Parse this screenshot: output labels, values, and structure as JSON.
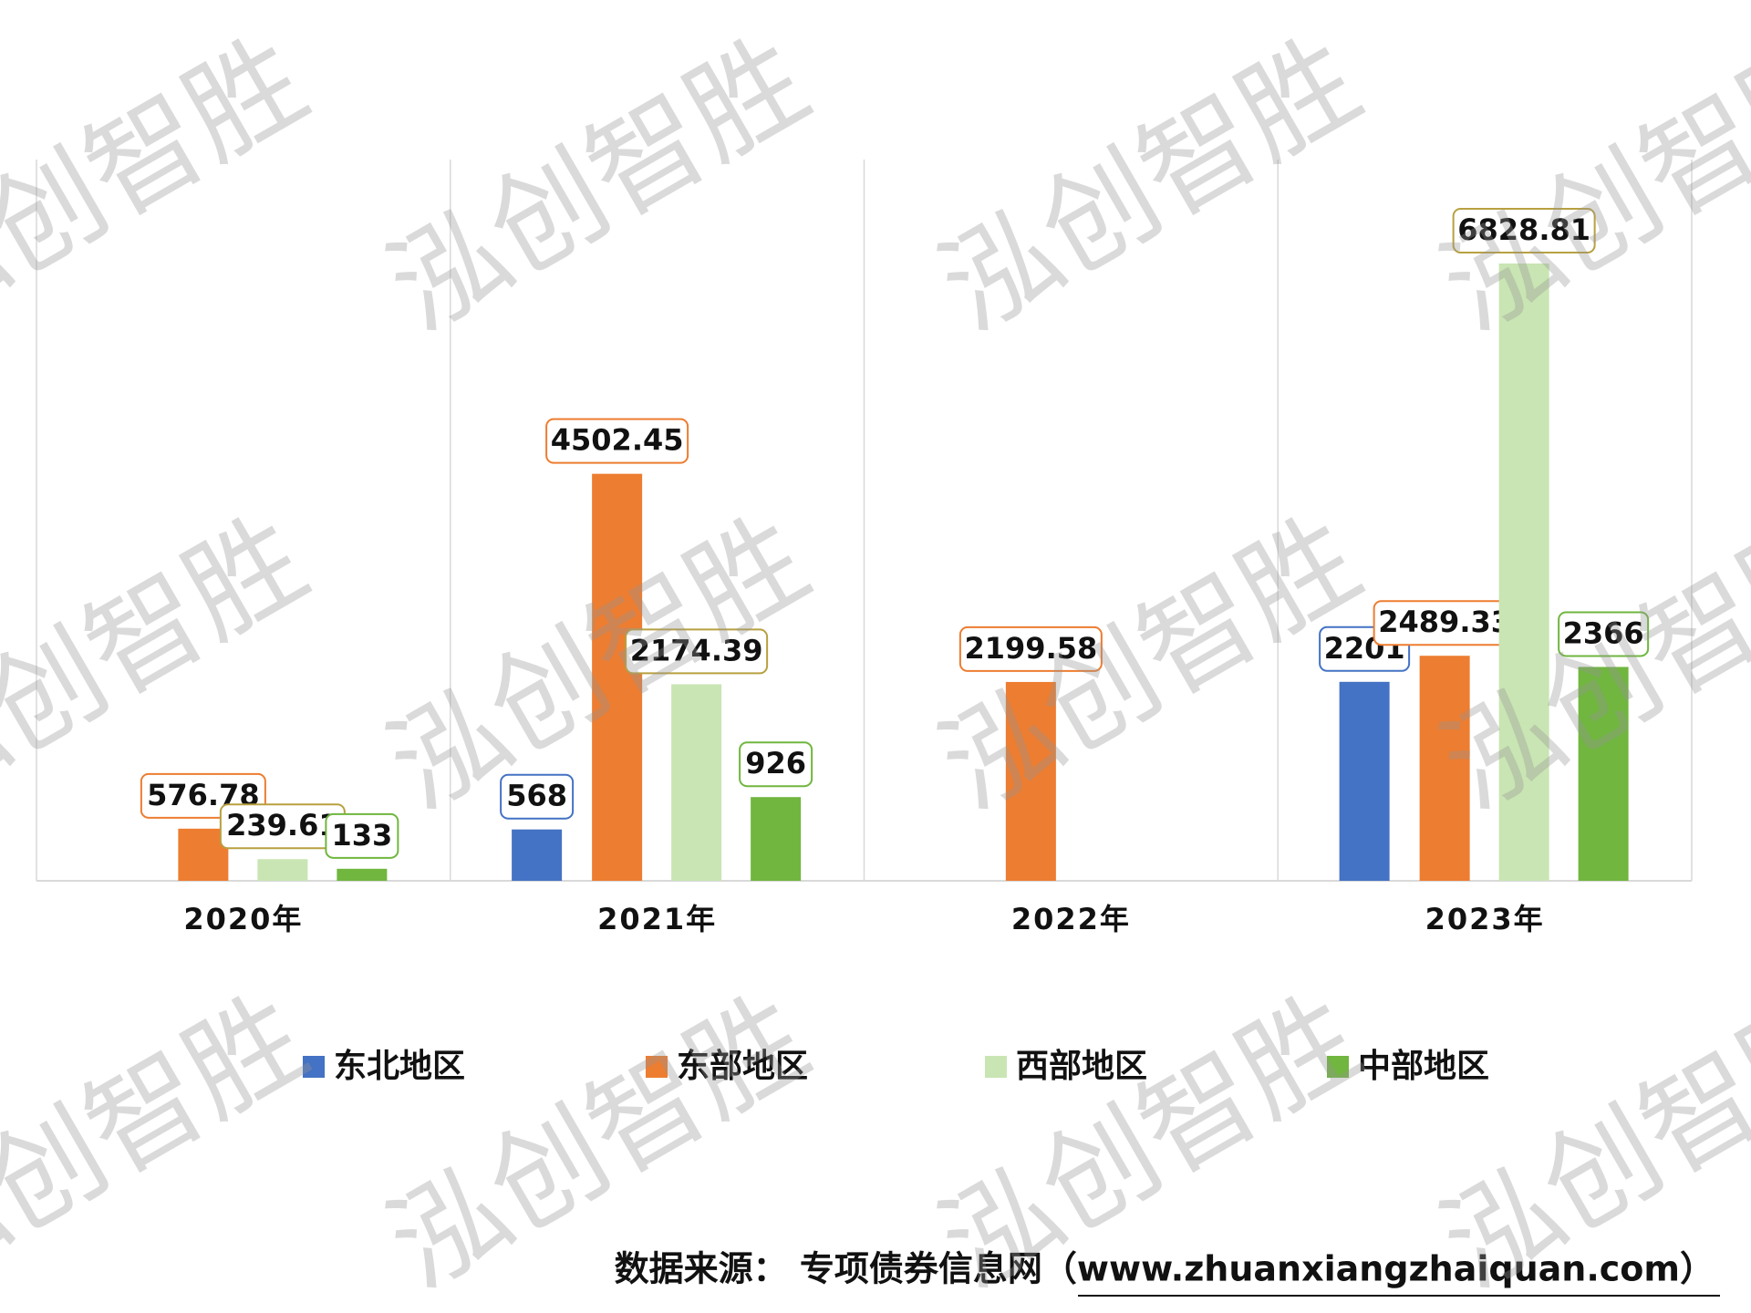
{
  "chart_data": {
    "type": "bar",
    "categories": [
      "2020年",
      "2021年",
      "2022年",
      "2023年"
    ],
    "series": [
      {
        "name": "东北地区",
        "color": "#4472c4",
        "values": [
          null,
          568,
          null,
          2201
        ]
      },
      {
        "name": "东部地区",
        "color": "#ed7d31",
        "values": [
          576.78,
          4502.45,
          2199.58,
          2489.33
        ]
      },
      {
        "name": "西部地区",
        "color": "#c9e5b3",
        "values": [
          239.61,
          2174.39,
          null,
          6828.81
        ]
      },
      {
        "name": "中部地区",
        "color": "#70b63f",
        "values": [
          133,
          926,
          null,
          2366
        ]
      }
    ],
    "source": "数据来源： 专项债券信息网（www.zhuanxiangzhaiquan.com）",
    "watermark": "泓创智胜"
  }
}
